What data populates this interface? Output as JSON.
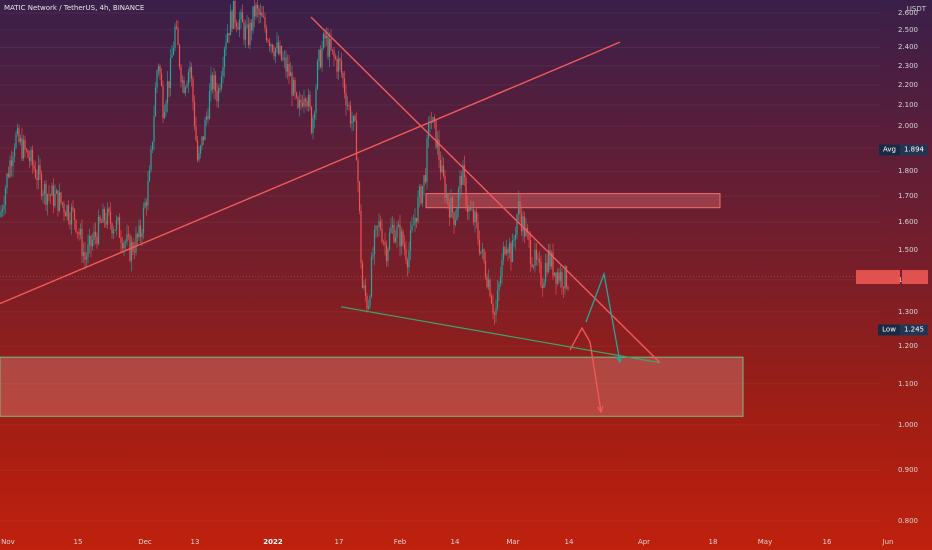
{
  "chart_data": {
    "type": "candlestick",
    "title": "MATIC Network / TetherUS, 4h, BINANCE",
    "y_unit": "USDT",
    "y_ticks": [
      "2.600",
      "2.500",
      "2.400",
      "2.300",
      "2.200",
      "2.100",
      "2.000",
      "1.900",
      "1.800",
      "1.700",
      "1.600",
      "1.500",
      "1.400",
      "1.300",
      "1.200",
      "1.100",
      "1.000",
      "0.900",
      "0.800"
    ],
    "x_ticks": [
      "Nov",
      "15",
      "Dec",
      "13",
      "2022",
      "17",
      "Feb",
      "14",
      "Mar",
      "14",
      "Apr",
      "18",
      "May",
      "16",
      "Jun"
    ],
    "x_bold": [
      "2022"
    ],
    "ylim": [
      0.75,
      2.65
    ],
    "y_axis_scale": "log",
    "price_path": [
      [
        0,
        1.62
      ],
      [
        15,
        1.95
      ],
      [
        30,
        1.85
      ],
      [
        45,
        1.72
      ],
      [
        60,
        1.68
      ],
      [
        75,
        1.62
      ],
      [
        85,
        1.47
      ],
      [
        95,
        1.55
      ],
      [
        105,
        1.62
      ],
      [
        118,
        1.58
      ],
      [
        130,
        1.5
      ],
      [
        140,
        1.55
      ],
      [
        150,
        1.78
      ],
      [
        158,
        2.35
      ],
      [
        163,
        2.1
      ],
      [
        170,
        2.25
      ],
      [
        175,
        2.5
      ],
      [
        183,
        2.2
      ],
      [
        190,
        2.3
      ],
      [
        198,
        1.82
      ],
      [
        205,
        2.0
      ],
      [
        212,
        2.22
      ],
      [
        218,
        2.15
      ],
      [
        225,
        2.45
      ],
      [
        233,
        2.6
      ],
      [
        240,
        2.55
      ],
      [
        248,
        2.45
      ],
      [
        255,
        2.62
      ],
      [
        262,
        2.55
      ],
      [
        270,
        2.45
      ],
      [
        280,
        2.35
      ],
      [
        290,
        2.25
      ],
      [
        298,
        2.05
      ],
      [
        305,
        2.2
      ],
      [
        312,
        2.0
      ],
      [
        318,
        2.3
      ],
      [
        325,
        2.45
      ],
      [
        332,
        2.35
      ],
      [
        340,
        2.3
      ],
      [
        348,
        2.1
      ],
      [
        356,
        1.95
      ],
      [
        362,
        1.38
      ],
      [
        368,
        1.32
      ],
      [
        374,
        1.52
      ],
      [
        380,
        1.6
      ],
      [
        386,
        1.5
      ],
      [
        392,
        1.58
      ],
      [
        400,
        1.55
      ],
      [
        408,
        1.48
      ],
      [
        415,
        1.62
      ],
      [
        420,
        1.7
      ],
      [
        425,
        1.78
      ],
      [
        430,
        2.05
      ],
      [
        436,
        1.95
      ],
      [
        442,
        1.78
      ],
      [
        448,
        1.68
      ],
      [
        455,
        1.62
      ],
      [
        462,
        1.8
      ],
      [
        468,
        1.65
      ],
      [
        475,
        1.6
      ],
      [
        482,
        1.48
      ],
      [
        490,
        1.38
      ],
      [
        495,
        1.28
      ],
      [
        500,
        1.4
      ],
      [
        506,
        1.55
      ],
      [
        512,
        1.48
      ],
      [
        518,
        1.66
      ],
      [
        524,
        1.58
      ],
      [
        530,
        1.5
      ],
      [
        536,
        1.45
      ],
      [
        542,
        1.4
      ],
      [
        548,
        1.48
      ],
      [
        555,
        1.43
      ],
      [
        562,
        1.41
      ],
      [
        568,
        1.4
      ]
    ],
    "annotations": {
      "resistance_zone": [
        1.655,
        1.71
      ],
      "support_zone": [
        1.02,
        1.17
      ],
      "avg_label": "Avg",
      "avg_value": "1.894",
      "low_label": "Low",
      "low_value": "1.245",
      "current_value": 1.41
    }
  },
  "colors": {
    "up": "#26a69a",
    "down": "#ef5350",
    "trendline": "#f25a5a",
    "support_line": "#3aa86b",
    "green_arrow": "#26a69a",
    "red_arrow": "#f25a5a"
  }
}
